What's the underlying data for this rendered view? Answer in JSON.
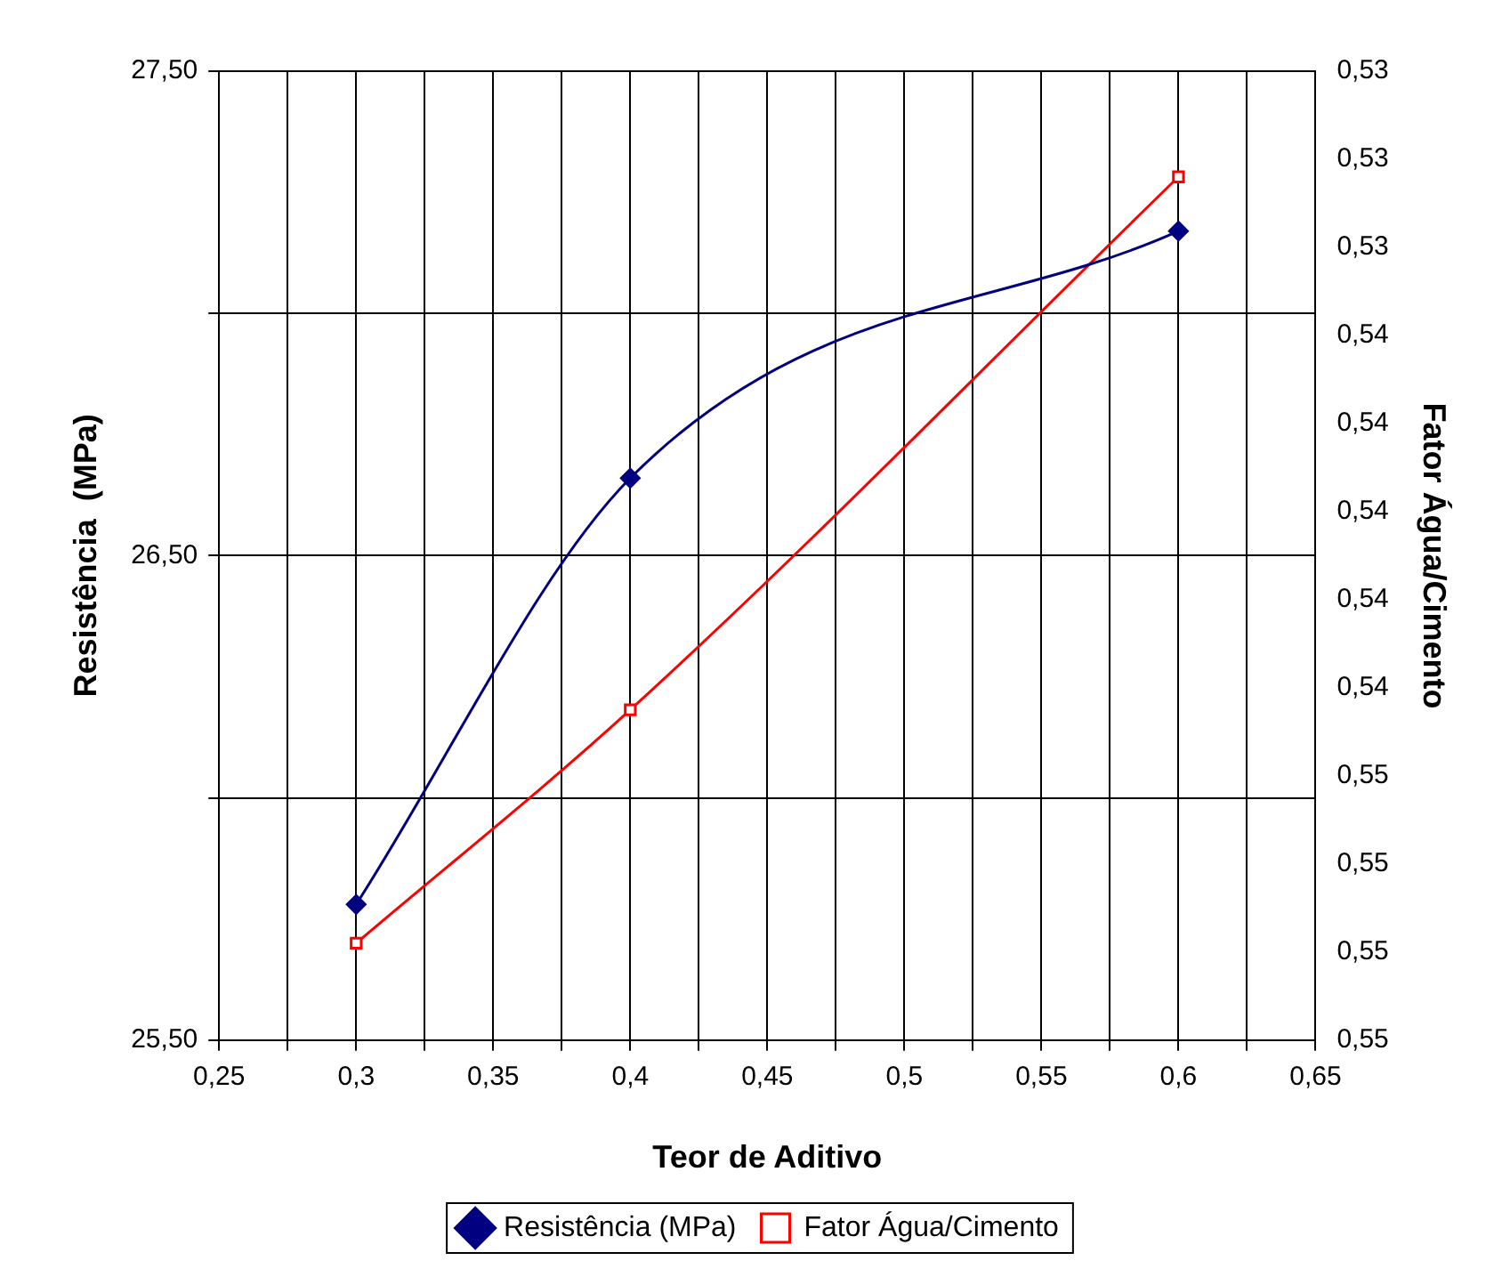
{
  "chart_data": {
    "type": "line",
    "xlabel": "Teor de Aditivo",
    "ylabel": "Resistência  (MPa)",
    "y2label": "Fator Água/Cimento",
    "x": [
      0.3,
      0.4,
      0.6
    ],
    "series": [
      {
        "name": "Resistência (MPa)",
        "color": "#000080",
        "values": [
          25.78,
          26.66,
          27.17
        ],
        "marker": "diamond"
      },
      {
        "name": "Fator Água/Cimento",
        "color": "#ff0000",
        "values": [
          0.5508,
          0.5455,
          0.5334
        ],
        "marker": "square",
        "axis": "y2"
      }
    ],
    "xlim": [
      0.25,
      0.65
    ],
    "xticks": [
      {
        "value": 0.25,
        "label": "0,25"
      },
      {
        "value": 0.275,
        "label": null
      },
      {
        "value": 0.3,
        "label": "0,3"
      },
      {
        "value": 0.325,
        "label": null
      },
      {
        "value": 0.35,
        "label": "0,35"
      },
      {
        "value": 0.375,
        "label": null
      },
      {
        "value": 0.4,
        "label": "0,4"
      },
      {
        "value": 0.425,
        "label": null
      },
      {
        "value": 0.45,
        "label": "0,45"
      },
      {
        "value": 0.475,
        "label": null
      },
      {
        "value": 0.5,
        "label": "0,5"
      },
      {
        "value": 0.525,
        "label": null
      },
      {
        "value": 0.55,
        "label": "0,55"
      },
      {
        "value": 0.575,
        "label": null
      },
      {
        "value": 0.6,
        "label": "0,6"
      },
      {
        "value": 0.625,
        "label": null
      },
      {
        "value": 0.65,
        "label": "0,65"
      }
    ],
    "ylim": [
      25.5,
      27.5
    ],
    "yticks": [
      {
        "value": 25.5,
        "label": "25,50"
      },
      {
        "value": 26,
        "label": null
      },
      {
        "value": 26.5,
        "label": "26,50"
      },
      {
        "value": 27,
        "label": null
      },
      {
        "value": 27.5,
        "label": "27,50"
      }
    ],
    "y2lim": [
      0.553,
      0.531
    ],
    "y2ticks": [
      {
        "value": 0.531,
        "label": "0,53"
      },
      {
        "value": 0.533,
        "label": "0,53"
      },
      {
        "value": 0.535,
        "label": "0,53"
      },
      {
        "value": 0.537,
        "label": "0,54"
      },
      {
        "value": 0.539,
        "label": "0,54"
      },
      {
        "value": 0.541,
        "label": "0,54"
      },
      {
        "value": 0.543,
        "label": "0,54"
      },
      {
        "value": 0.545,
        "label": "0,54"
      },
      {
        "value": 0.547,
        "label": "0,55"
      },
      {
        "value": 0.549,
        "label": "0,55"
      },
      {
        "value": 0.551,
        "label": "0,55"
      },
      {
        "value": 0.553,
        "label": "0,55"
      }
    ],
    "grid": true,
    "legend": "bottom"
  }
}
